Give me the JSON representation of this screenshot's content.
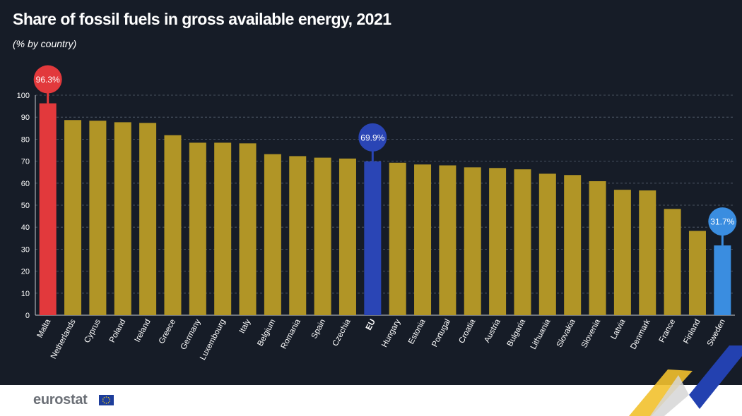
{
  "header": {
    "title": "Share of fossil fuels in gross available energy, 2021",
    "subtitle": "(% by country)"
  },
  "footer": {
    "logo_text": "eurostat"
  },
  "colors": {
    "background": "#161c27",
    "bar_default": "#b19526",
    "bar_max": "#e2393c",
    "bar_eu": "#2a45b5",
    "bar_min": "#3a8de0",
    "axis_text": "#ffffff",
    "grid": "#556070"
  },
  "chart_data": {
    "type": "bar",
    "title": "Share of fossil fuels in gross available energy, 2021",
    "subtitle": "(% by country)",
    "xlabel": "",
    "ylabel": "",
    "ylim": [
      0,
      100
    ],
    "yticks": [
      0,
      10,
      20,
      30,
      40,
      50,
      60,
      70,
      80,
      90,
      100
    ],
    "grid": true,
    "categories": [
      "Malta",
      "Netherlands",
      "Cyprus",
      "Poland",
      "Ireland",
      "Greece",
      "Germany",
      "Luxembourg",
      "Italy",
      "Belgium",
      "Romania",
      "Spain",
      "Czechia",
      "EU",
      "Hungary",
      "Estonia",
      "Portugal",
      "Croatia",
      "Austria",
      "Bulgaria",
      "Lithuania",
      "Slovakia",
      "Slovenia",
      "Latvia",
      "Denmark",
      "France",
      "Finland",
      "Sweden"
    ],
    "values": [
      96.3,
      88.7,
      88.4,
      87.7,
      87.4,
      81.8,
      78.4,
      78.4,
      78.1,
      73.2,
      72.3,
      71.6,
      71.2,
      69.9,
      69.3,
      68.5,
      68.1,
      67.2,
      66.9,
      66.3,
      64.3,
      63.7,
      60.9,
      57.0,
      56.7,
      48.3,
      38.3,
      31.7
    ],
    "highlights": [
      {
        "category": "Malta",
        "label": "96.3%",
        "color": "#e2393c"
      },
      {
        "category": "EU",
        "label": "69.9%",
        "color": "#2a45b5"
      },
      {
        "category": "Sweden",
        "label": "31.7%",
        "color": "#3a8de0"
      }
    ]
  }
}
